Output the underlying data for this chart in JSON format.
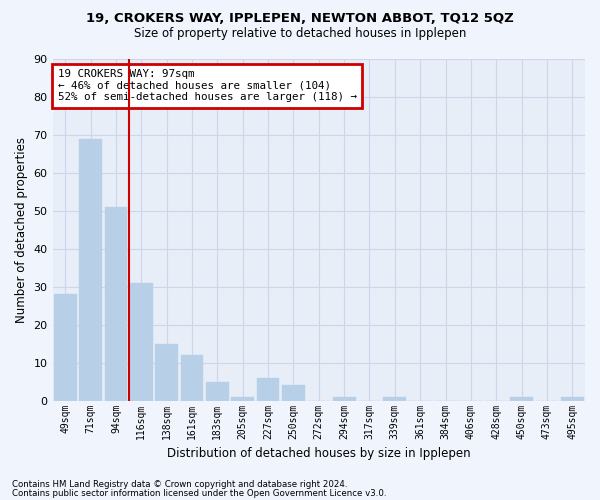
{
  "title": "19, CROKERS WAY, IPPLEPEN, NEWTON ABBOT, TQ12 5QZ",
  "subtitle": "Size of property relative to detached houses in Ipplepen",
  "xlabel": "Distribution of detached houses by size in Ipplepen",
  "ylabel": "Number of detached properties",
  "categories": [
    "49sqm",
    "71sqm",
    "94sqm",
    "116sqm",
    "138sqm",
    "161sqm",
    "183sqm",
    "205sqm",
    "227sqm",
    "250sqm",
    "272sqm",
    "294sqm",
    "317sqm",
    "339sqm",
    "361sqm",
    "384sqm",
    "406sqm",
    "428sqm",
    "450sqm",
    "473sqm",
    "495sqm"
  ],
  "values": [
    28,
    69,
    51,
    31,
    15,
    12,
    5,
    1,
    6,
    4,
    0,
    1,
    0,
    1,
    0,
    0,
    0,
    0,
    1,
    0,
    1
  ],
  "bar_color": "#b8cfe8",
  "bar_edge_color": "#b8cfe8",
  "vline_index": 2,
  "vline_color": "#cc0000",
  "annotation_title": "19 CROKERS WAY: 97sqm",
  "annotation_line1": "← 46% of detached houses are smaller (104)",
  "annotation_line2": "52% of semi-detached houses are larger (118) →",
  "annotation_box_edgecolor": "#cc0000",
  "ylim": [
    0,
    90
  ],
  "yticks": [
    0,
    10,
    20,
    30,
    40,
    50,
    60,
    70,
    80,
    90
  ],
  "grid_color": "#cdd6e8",
  "bg_color": "#e8eef8",
  "fig_bg_color": "#f0f4fc",
  "footnote1": "Contains HM Land Registry data © Crown copyright and database right 2024.",
  "footnote2": "Contains public sector information licensed under the Open Government Licence v3.0."
}
